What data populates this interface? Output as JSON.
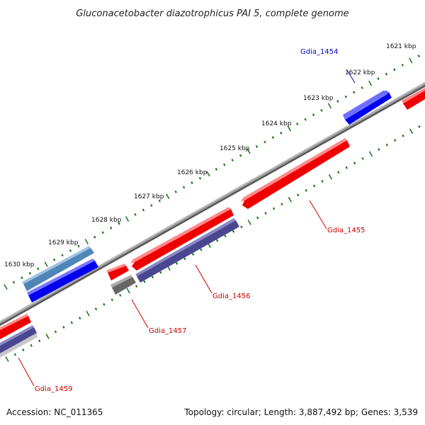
{
  "title": "Gluconacetobacter diazotrophicus PAI 5, complete genome",
  "footer": {
    "accession": "Accession: NC_011365",
    "summary": "Topology: circular; Length: 3,887,492 bp; Genes: 3,539"
  },
  "ticks": [
    "1621 kbp",
    "1622 kbp",
    "1623 kbp",
    "1624 kbp",
    "1625 kbp",
    "1626 kbp",
    "1627 kbp",
    "1628 kbp",
    "1629 kbp",
    "1630 kbp"
  ],
  "genes": [
    {
      "label": "Gdia_1454",
      "color": "#0000cc"
    },
    {
      "label": "Gdia_1455",
      "color": "#cc0000"
    },
    {
      "label": "Gdia_1456",
      "color": "#cc0000"
    },
    {
      "label": "Gdia_1457",
      "color": "#cc0000"
    },
    {
      "label": "Gdia_1459",
      "color": "#cc0000"
    }
  ],
  "colors": {
    "backbone": "#888888",
    "tick_marks": "#1e7a1e",
    "gene_red": "#ee0000",
    "gene_blue": "#0000ee",
    "gene_steel": "#4f86b8",
    "gene_slate": "#4a4790",
    "gene_gray": "#666666"
  }
}
